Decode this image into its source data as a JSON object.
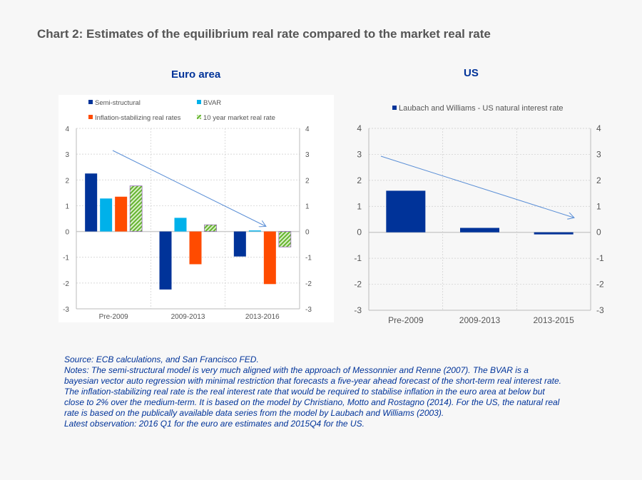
{
  "title": "Chart 2: Estimates of the equilibrium real rate compared to the market real rate",
  "chart_data": [
    {
      "type": "bar",
      "subtitle": "Euro area",
      "categories": [
        "Pre-2009",
        "2009-2013",
        "2013-2016"
      ],
      "series": [
        {
          "name": "Semi-structural",
          "color": "#003399",
          "values": [
            2.25,
            -2.25,
            -0.97
          ]
        },
        {
          "name": "BVAR",
          "color": "#00b1ea",
          "values": [
            1.28,
            0.53,
            0.04
          ]
        },
        {
          "name": "Inflation-stabilizing real rates",
          "color": "#ff4b00",
          "values": [
            1.35,
            -1.27,
            -2.04
          ]
        },
        {
          "name": "10 year market real rate",
          "color": "#65b32e",
          "pattern": "hatched",
          "values": [
            1.77,
            0.26,
            -0.6
          ]
        }
      ],
      "ylim": [
        -3,
        4
      ],
      "yticks": [
        4,
        3,
        2,
        1,
        0,
        -1,
        -2,
        -3
      ],
      "grid": true,
      "legend": "top",
      "dual_axis": true,
      "annotation": "downward trend arrow"
    },
    {
      "type": "bar",
      "subtitle": "US",
      "categories": [
        "Pre-2009",
        "2009-2013",
        "2013-2015"
      ],
      "series": [
        {
          "name": "Laubach and Williams - US natural interest rate",
          "color": "#003399",
          "values": [
            1.6,
            0.17,
            -0.08
          ]
        }
      ],
      "ylim": [
        -3,
        4
      ],
      "yticks": [
        4,
        3,
        2,
        1,
        0,
        -1,
        -2,
        -3
      ],
      "grid": true,
      "legend": "top",
      "dual_axis": true,
      "annotation": "downward trend arrow"
    }
  ],
  "notes": [
    "Source: ECB calculations, and San Francisco FED.",
    "Notes: The semi-structural model is very much aligned with the approach of Messonnier and Renne (2007). The BVAR is a",
    "bayesian vector auto regression with minimal restriction  that forecasts a five-year ahead forecast of the short-term real interest rate.",
    "The  inflation-stabilizing real rate is the real interest rate that would be required to stabilise inflation in the euro area at below but",
    "close to 2% over the medium-term. It is based on the model by Christiano, Motto and Rostagno (2014). For the US, the natural real",
    "rate is based on the publically available data series from the model by Laubach and Williams (2003).",
    "Latest observation: 2016 Q1  for the euro are estimates and 2015Q4 for the US."
  ]
}
